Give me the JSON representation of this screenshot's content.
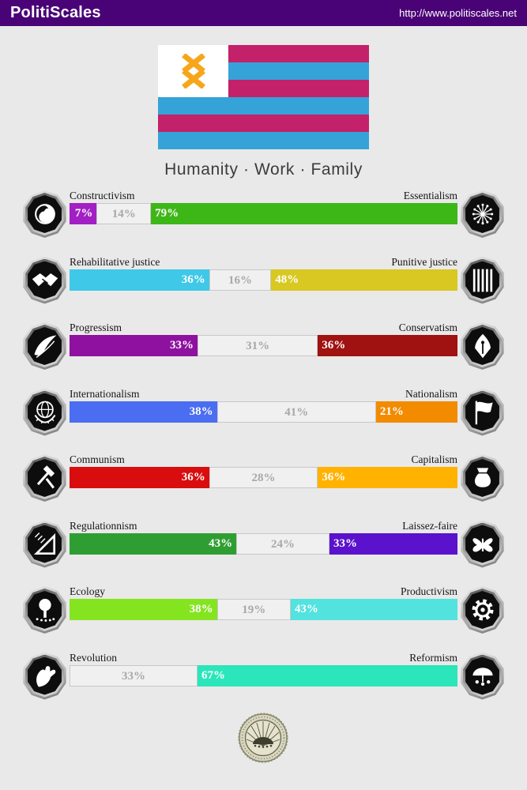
{
  "header": {
    "title": "PolitiScales",
    "url": "http://www.politiscales.net",
    "bg_color": "#4a0377"
  },
  "flag": {
    "tagline": "Humanity · Work · Family",
    "stripe_colors": [
      "#c32169",
      "#35a3d8",
      "#c32169",
      "#35a3d8",
      "#c32169",
      "#35a3d8"
    ],
    "canton_color": "#ffffff",
    "symbol": "double-cross-rune",
    "symbol_color": "#f7a61b"
  },
  "axes": [
    {
      "left_label": "Constructivism",
      "right_label": "Essentialism",
      "left_icon": "sphere-swirl-icon",
      "right_icon": "dandelion-icon",
      "left_color": "#a21fc4",
      "right_color": "#3db718",
      "left_pct": 7,
      "mid_pct": 14,
      "right_pct": 79,
      "left_text": "7%",
      "mid_text": "14%",
      "right_text": "79%"
    },
    {
      "left_label": "Rehabilitative justice",
      "right_label": "Punitive justice",
      "left_icon": "handshake-icon",
      "right_icon": "prison-bars-icon",
      "left_color": "#3fc8e8",
      "right_color": "#d8c821",
      "left_pct": 36,
      "mid_pct": 16,
      "right_pct": 48,
      "left_text": "36%",
      "mid_text": "16%",
      "right_text": "48%"
    },
    {
      "left_label": "Progressism",
      "right_label": "Conservatism",
      "left_icon": "wave-icon",
      "right_icon": "pen-nib-icon",
      "left_color": "#8f119f",
      "right_color": "#a01111",
      "left_pct": 33,
      "mid_pct": 31,
      "right_pct": 36,
      "left_text": "33%",
      "mid_text": "31%",
      "right_text": "36%"
    },
    {
      "left_label": "Internationalism",
      "right_label": "Nationalism",
      "left_icon": "globe-laurel-icon",
      "right_icon": "flag-icon",
      "left_color": "#4a6df2",
      "right_color": "#f28b00",
      "left_pct": 38,
      "mid_pct": 41,
      "right_pct": 21,
      "left_text": "38%",
      "mid_text": "41%",
      "right_text": "21%"
    },
    {
      "left_label": "Communism",
      "right_label": "Capitalism",
      "left_icon": "hammer-sickle-icon",
      "right_icon": "money-bag-icon",
      "left_color": "#d90d0d",
      "right_color": "#ffb200",
      "left_pct": 36,
      "mid_pct": 28,
      "right_pct": 36,
      "left_text": "36%",
      "mid_text": "28%",
      "right_text": "36%"
    },
    {
      "left_label": "Regulationnism",
      "right_label": "Laissez-faire",
      "left_icon": "set-square-icon",
      "right_icon": "butterfly-icon",
      "left_color": "#2f9e32",
      "right_color": "#5a12cc",
      "left_pct": 43,
      "mid_pct": 24,
      "right_pct": 33,
      "left_text": "43%",
      "mid_text": "24%",
      "right_text": "33%"
    },
    {
      "left_label": "Ecology",
      "right_label": "Productivism",
      "left_icon": "tree-icon",
      "right_icon": "gear-icon",
      "left_color": "#85e420",
      "right_color": "#52e3df",
      "left_pct": 38,
      "mid_pct": 19,
      "right_pct": 43,
      "left_text": "38%",
      "mid_text": "19%",
      "right_text": "43%"
    },
    {
      "left_label": "Revolution",
      "right_label": "Reformism",
      "left_icon": "fist-icon",
      "right_icon": "umbrella-people-icon",
      "left_color": null,
      "right_color": "#2ae6ba",
      "left_pct": 0,
      "mid_pct": 33,
      "right_pct": 67,
      "left_text": "",
      "mid_text": "33%",
      "right_text": "67%"
    }
  ],
  "seal": {
    "name": "politiscales-seal"
  }
}
